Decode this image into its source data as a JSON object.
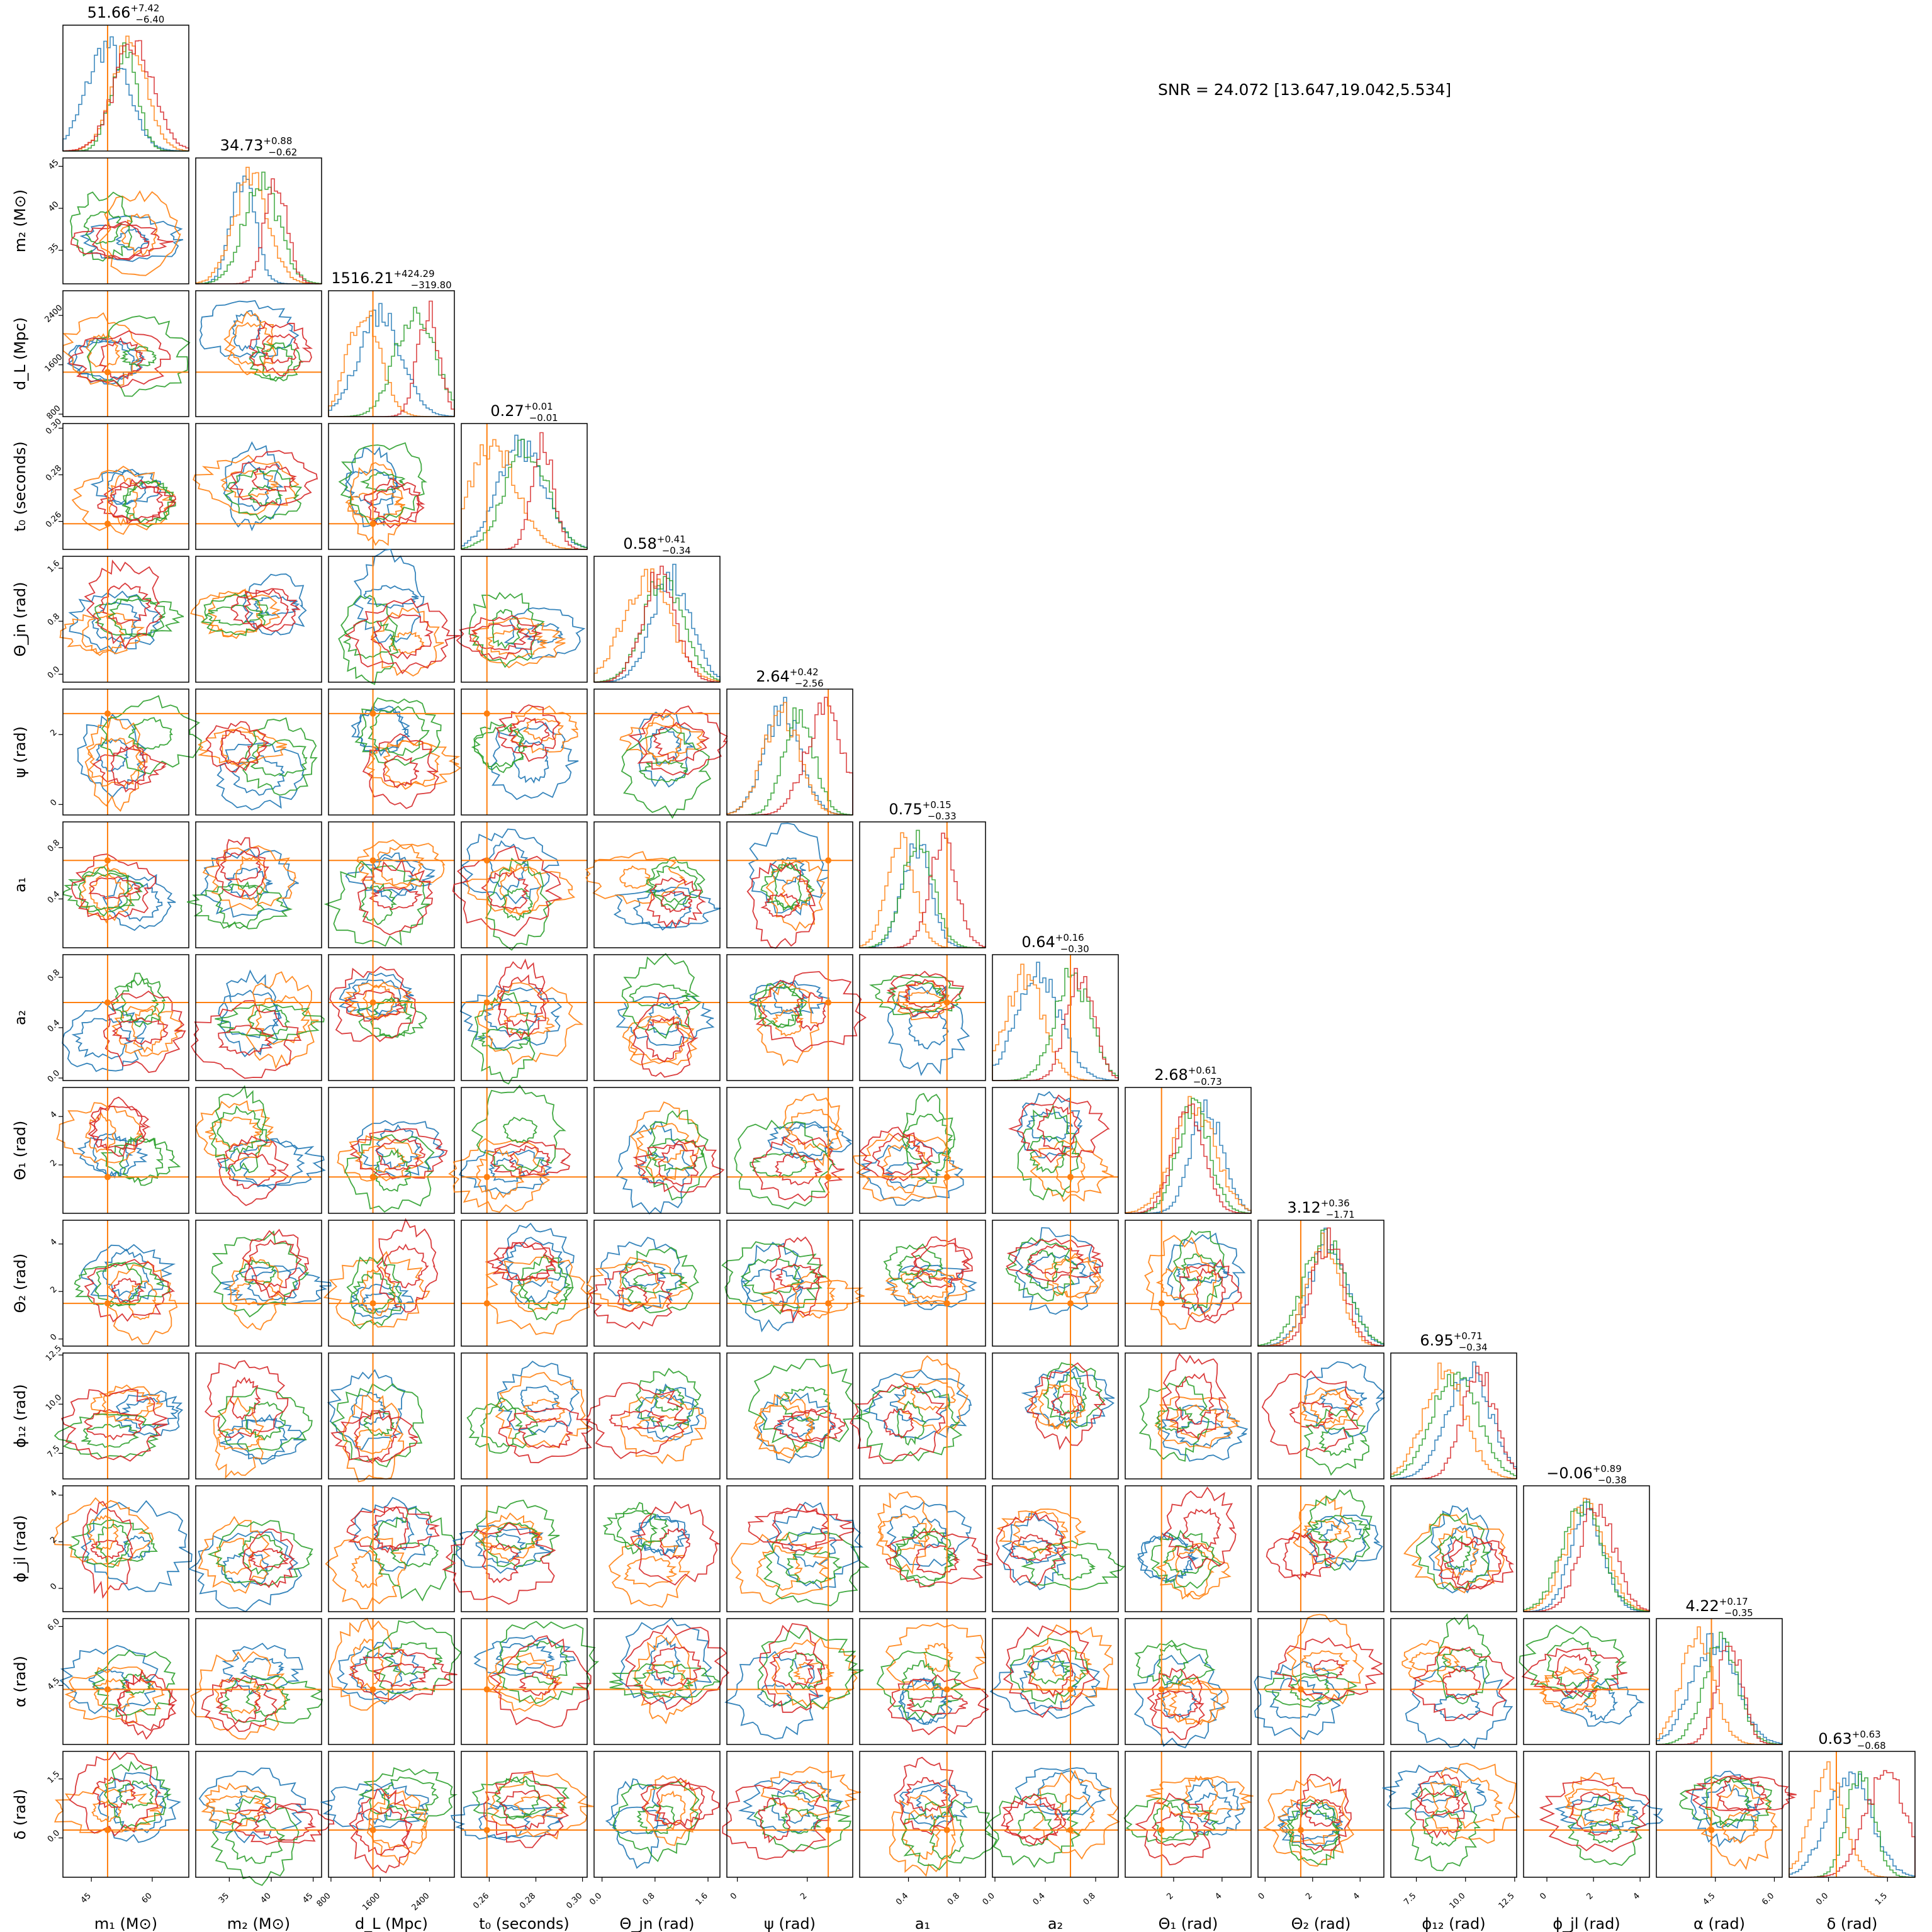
{
  "snr_text": "SNR = 24.072 [13.647,19.042,5.534]",
  "colors": {
    "blue": "#1f77b4",
    "orange": "#ff7f0e",
    "green": "#2ca02c",
    "red": "#d62728",
    "truth": "#ff7f0e"
  },
  "chart_data": {
    "type": "corner",
    "grid": false,
    "legend": "none",
    "series_colors": [
      "#1f77b4",
      "#ff7f0e",
      "#2ca02c",
      "#d62728"
    ],
    "parameters": [
      {
        "key": "m1",
        "label": "m₁ (M⊙)",
        "ylabel": "m₂ (M⊙)",
        "range": [
          38,
          69
        ],
        "ticks": [
          {
            "v": 45,
            "t": "45"
          },
          {
            "v": 60,
            "t": "60"
          }
        ],
        "truth": 49,
        "summary": {
          "median": "51.66",
          "plus": "+7.42",
          "minus": "−6.40"
        }
      },
      {
        "key": "m2",
        "label": "m₂ (M⊙)",
        "range": [
          31,
          46
        ],
        "ticks": [
          {
            "v": 35,
            "t": "35"
          },
          {
            "v": 40,
            "t": "40"
          },
          {
            "v": 45,
            "t": "45"
          }
        ],
        "truth": null,
        "summary": {
          "median": "34.73",
          "plus": "+0.88",
          "minus": "−0.62"
        }
      },
      {
        "key": "dL",
        "label": "d_L (Mpc)",
        "range": [
          760,
          2800
        ],
        "ticks": [
          {
            "v": 800,
            "t": "800"
          },
          {
            "v": 1600,
            "t": "1600"
          },
          {
            "v": 2400,
            "t": "2400"
          }
        ],
        "truth": 1480,
        "summary": {
          "median": "1516.21",
          "plus": "+424.29",
          "minus": "−319.80"
        }
      },
      {
        "key": "t0",
        "label": "t₀ (seconds)",
        "range": [
          0.248,
          0.302
        ],
        "ticks": [
          {
            "v": 0.26,
            "t": "0.26"
          },
          {
            "v": 0.28,
            "t": "0.28"
          },
          {
            "v": 0.3,
            "t": "0.30"
          }
        ],
        "truth": 0.259,
        "summary": {
          "median": "0.27",
          "plus": "+0.01",
          "minus": "−0.01"
        }
      },
      {
        "key": "thetajn",
        "label": "Θ_jn (rad)",
        "range": [
          -0.12,
          1.78
        ],
        "ticks": [
          {
            "v": 0.0,
            "t": "0.0"
          },
          {
            "v": 0.8,
            "t": "0.8"
          },
          {
            "v": 1.6,
            "t": "1.6"
          }
        ],
        "truth": null,
        "summary": {
          "median": "0.58",
          "plus": "+0.41",
          "minus": "−0.34"
        }
      },
      {
        "key": "psi",
        "label": "ψ (rad)",
        "range": [
          -0.3,
          3.3
        ],
        "ticks": [
          {
            "v": 0,
            "t": "0"
          },
          {
            "v": 2,
            "t": "2"
          }
        ],
        "truth": 2.6,
        "summary": {
          "median": "2.64",
          "plus": "+0.42",
          "minus": "−2.56"
        }
      },
      {
        "key": "a1",
        "label": "a₁",
        "range": [
          0.02,
          1.0
        ],
        "ticks": [
          {
            "v": 0.4,
            "t": "0.4"
          },
          {
            "v": 0.8,
            "t": "0.8"
          }
        ],
        "truth": 0.7,
        "summary": {
          "median": "0.75",
          "plus": "+0.15",
          "minus": "−0.33"
        }
      },
      {
        "key": "a2",
        "label": "a₂",
        "range": [
          -0.02,
          0.98
        ],
        "ticks": [
          {
            "v": 0.0,
            "t": "0.0"
          },
          {
            "v": 0.4,
            "t": "0.4"
          },
          {
            "v": 0.8,
            "t": "0.8"
          }
        ],
        "truth": 0.6,
        "summary": {
          "median": "0.64",
          "plus": "+0.16",
          "minus": "−0.30"
        }
      },
      {
        "key": "theta1",
        "label": "Θ₁ (rad)",
        "range": [
          0.0,
          5.2
        ],
        "ticks": [
          {
            "v": 2,
            "t": "2"
          },
          {
            "v": 4,
            "t": "4"
          }
        ],
        "truth": 1.5,
        "summary": {
          "median": "2.68",
          "plus": "+0.61",
          "minus": "−0.73"
        }
      },
      {
        "key": "theta2",
        "label": "Θ₂ (rad)",
        "range": [
          -0.3,
          5.0
        ],
        "ticks": [
          {
            "v": 0,
            "t": "0"
          },
          {
            "v": 2,
            "t": "2"
          },
          {
            "v": 4,
            "t": "4"
          }
        ],
        "truth": 1.5,
        "summary": {
          "median": "3.12",
          "plus": "+0.36",
          "minus": "−1.71"
        }
      },
      {
        "key": "phi12",
        "label": "ϕ₁₂ (rad)",
        "range": [
          6.2,
          12.6
        ],
        "ticks": [
          {
            "v": 7.5,
            "t": "7.5"
          },
          {
            "v": 10.0,
            "t": "10.0"
          },
          {
            "v": 12.5,
            "t": "12.5"
          }
        ],
        "truth": null,
        "summary": {
          "median": "6.95",
          "plus": "+0.71",
          "minus": "−0.34"
        }
      },
      {
        "key": "phijl",
        "label": "ϕ_jl (rad)",
        "range": [
          -1.0,
          4.4
        ],
        "ticks": [
          {
            "v": 0,
            "t": "0"
          },
          {
            "v": 2,
            "t": "2"
          },
          {
            "v": 4,
            "t": "4"
          }
        ],
        "truth": null,
        "summary": {
          "median": "−0.06",
          "plus": "+0.89",
          "minus": "−0.38"
        }
      },
      {
        "key": "alpha",
        "label": "α (rad)",
        "range": [
          3.0,
          6.2
        ],
        "ticks": [
          {
            "v": 4.5,
            "t": "4.5"
          },
          {
            "v": 6.0,
            "t": "6.0"
          }
        ],
        "truth": 4.4,
        "summary": {
          "median": "4.22",
          "plus": "+0.17",
          "minus": "−0.35"
        }
      },
      {
        "key": "delta",
        "label": "δ (rad)",
        "range": [
          -1.0,
          2.2
        ],
        "ticks": [
          {
            "v": 0.0,
            "t": "0.0"
          },
          {
            "v": 1.5,
            "t": "1.5"
          }
        ],
        "truth": 0.2,
        "summary": {
          "median": "0.63",
          "plus": "+0.63",
          "minus": "−0.68"
        }
      }
    ]
  }
}
